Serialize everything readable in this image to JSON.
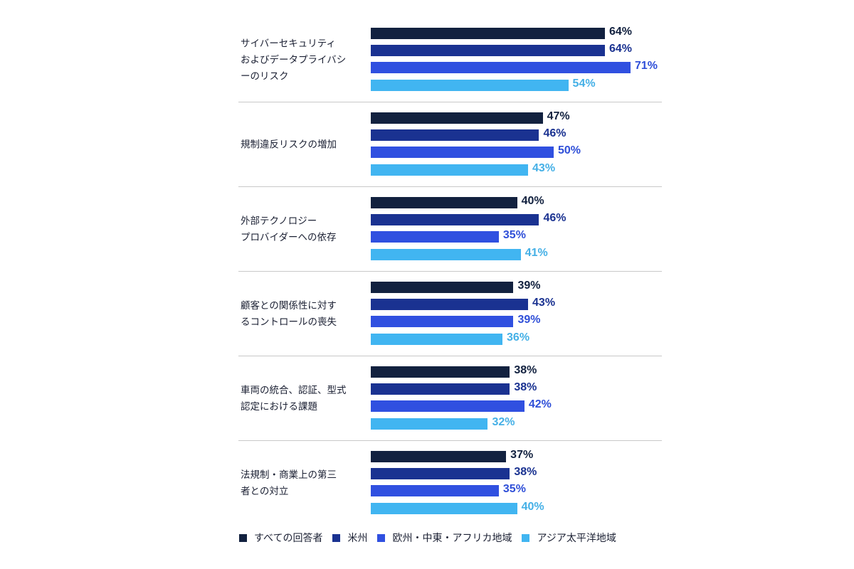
{
  "chart_data": {
    "type": "bar",
    "orientation": "horizontal",
    "categories": [
      "サイバーセキュリティ\nおよびデータプライバシ\nーのリスク",
      "規制違反リスクの増加",
      "外部テクノロジー\nプロバイダーへの依存",
      "顧客との関係性に対す\nるコントロールの喪失",
      "車両の統合、認証、型式\n認定における課題",
      "法規制・商業上の第三\n者との対立"
    ],
    "series": [
      {
        "name": "すべての回答者",
        "color": "#12213f",
        "label_color": "#12213f",
        "values": [
          64,
          47,
          40,
          39,
          38,
          37
        ]
      },
      {
        "name": "米州",
        "color": "#1a3291",
        "label_color": "#1a3291",
        "values": [
          64,
          46,
          46,
          43,
          38,
          38
        ]
      },
      {
        "name": "欧州・中東・アフリカ地域",
        "color": "#3050e0",
        "label_color": "#2f4fd8",
        "values": [
          71,
          50,
          35,
          39,
          42,
          35
        ]
      },
      {
        "name": "アジア太平洋地域",
        "color": "#41b5f1",
        "label_color": "#45b0e6",
        "values": [
          54,
          43,
          41,
          36,
          32,
          40
        ]
      }
    ],
    "value_suffix": "%",
    "xlim": [
      0,
      100
    ],
    "grid": false,
    "legend_position": "bottom"
  }
}
